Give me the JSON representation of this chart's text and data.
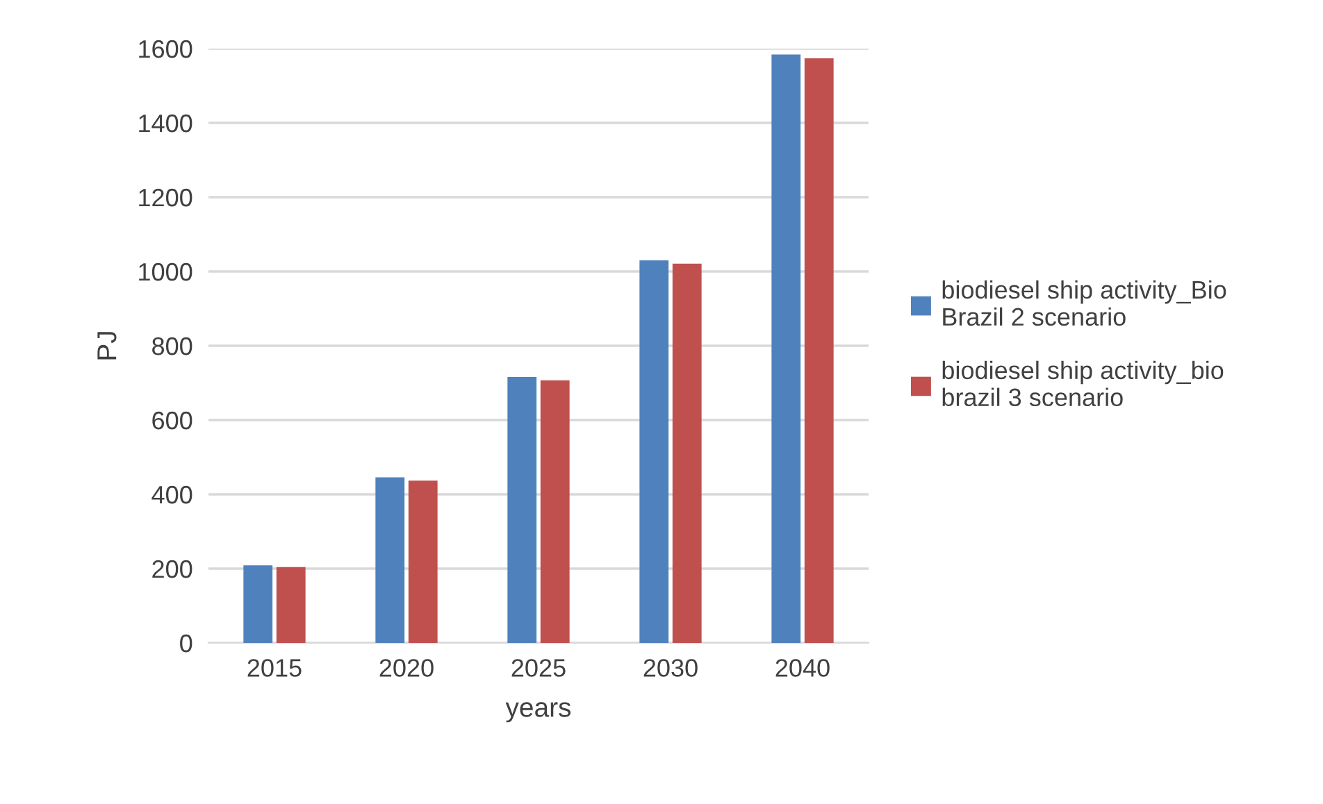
{
  "chart_data": {
    "type": "bar",
    "xlabel": "years",
    "ylabel": "PJ",
    "categories": [
      "2015",
      "2020",
      "2025",
      "2030",
      "2040"
    ],
    "series": [
      {
        "name": "biodiesel ship activity_Bio Brazil 2 scenario",
        "color": "#4f81bd",
        "values": [
          209,
          446,
          716,
          1030,
          1584
        ]
      },
      {
        "name": "biodiesel ship activity_bio brazil 3 scenario",
        "color": "#c0504d",
        "values": [
          204,
          437,
          707,
          1021,
          1574
        ]
      }
    ],
    "ylim": [
      0,
      1600
    ],
    "yticks": [
      0,
      200,
      400,
      600,
      800,
      1000,
      1200,
      1400,
      1600
    ],
    "grid": "y",
    "legend": "right"
  }
}
